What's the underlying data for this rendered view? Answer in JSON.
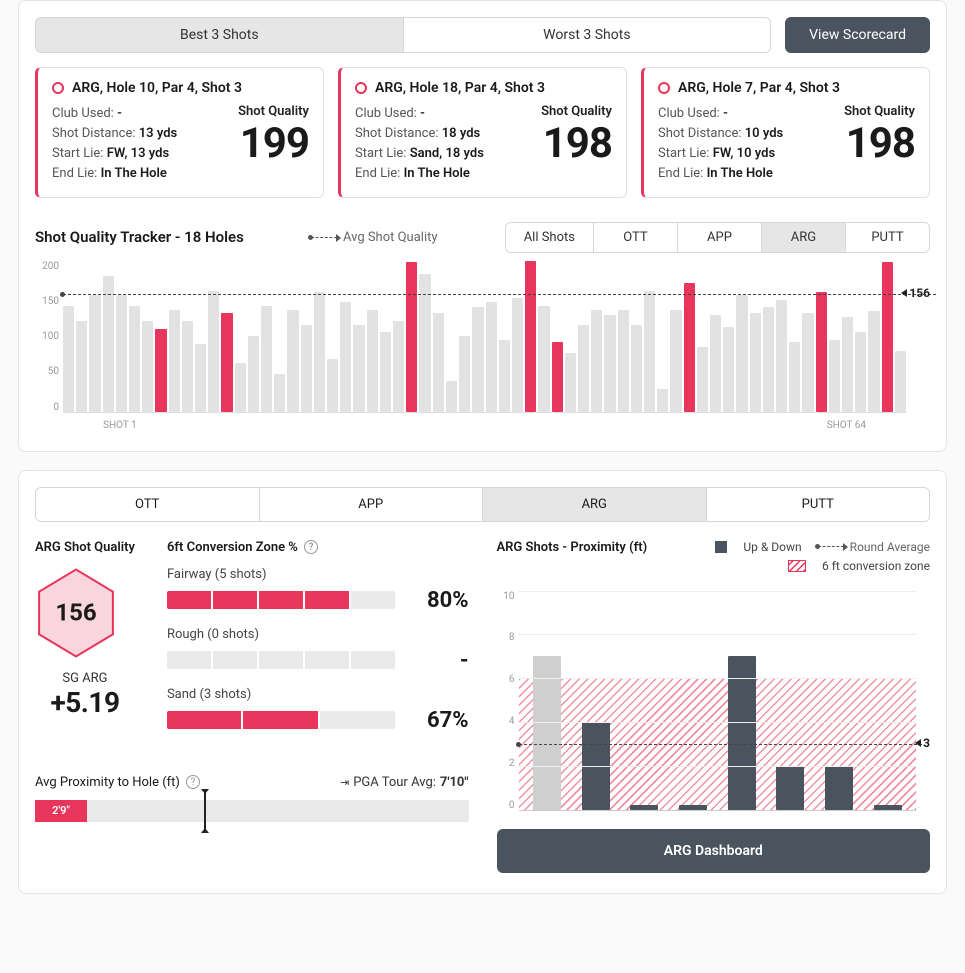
{
  "colors": {
    "accent": "#e7355c",
    "dark": "#4a545e",
    "mutedBar": "#e2e2e2",
    "highlightBar": "#e7355c",
    "hexFill": "#f9d5dd",
    "hexStroke": "#e7355c"
  },
  "topTabs": {
    "best": "Best 3 Shots",
    "worst": "Worst 3 Shots",
    "active": "best"
  },
  "viewScorecard": "View Scorecard",
  "shotCards": [
    {
      "title": "ARG, Hole 10, Par 4, Shot 3",
      "clubLabel": "Club Used:",
      "club": "-",
      "distLabel": "Shot Distance:",
      "dist": "13 yds",
      "startLabel": "Start Lie:",
      "start": "FW, 13 yds",
      "endLabel": "End Lie:",
      "end": "In The Hole",
      "qualityLabel": "Shot Quality",
      "quality": "199"
    },
    {
      "title": "ARG, Hole 18, Par 4, Shot 3",
      "clubLabel": "Club Used:",
      "club": "-",
      "distLabel": "Shot Distance:",
      "dist": "18 yds",
      "startLabel": "Start Lie:",
      "start": "Sand, 18 yds",
      "endLabel": "End Lie:",
      "end": "In The Hole",
      "qualityLabel": "Shot Quality",
      "quality": "198"
    },
    {
      "title": "ARG, Hole 7, Par 4, Shot 3",
      "clubLabel": "Club Used:",
      "club": "-",
      "distLabel": "Shot Distance:",
      "dist": "10 yds",
      "startLabel": "Start Lie:",
      "start": "FW, 10 yds",
      "endLabel": "End Lie:",
      "end": "In The Hole",
      "qualityLabel": "Shot Quality",
      "quality": "198"
    }
  ],
  "tracker": {
    "title": "Shot Quality Tracker - 18 Holes",
    "avgLegend": "Avg Shot Quality",
    "tabs": [
      "All Shots",
      "OTT",
      "APP",
      "ARG",
      "PUTT"
    ],
    "activeTab": "ARG",
    "yMax": 200,
    "yTicks": [
      "200",
      "150",
      "100",
      "50",
      "0"
    ],
    "avgValue": 156,
    "xStart": "SHOT 1",
    "xEnd": "SHOT 64",
    "bars": [
      {
        "v": 140,
        "h": false
      },
      {
        "v": 120,
        "h": false
      },
      {
        "v": 155,
        "h": false
      },
      {
        "v": 180,
        "h": false
      },
      {
        "v": 155,
        "h": false
      },
      {
        "v": 140,
        "h": false
      },
      {
        "v": 120,
        "h": false
      },
      {
        "v": 110,
        "h": true
      },
      {
        "v": 135,
        "h": false
      },
      {
        "v": 120,
        "h": false
      },
      {
        "v": 90,
        "h": false
      },
      {
        "v": 160,
        "h": false
      },
      {
        "v": 130,
        "h": true
      },
      {
        "v": 65,
        "h": false
      },
      {
        "v": 100,
        "h": false
      },
      {
        "v": 140,
        "h": false
      },
      {
        "v": 50,
        "h": false
      },
      {
        "v": 135,
        "h": false
      },
      {
        "v": 115,
        "h": false
      },
      {
        "v": 158,
        "h": false
      },
      {
        "v": 70,
        "h": false
      },
      {
        "v": 145,
        "h": false
      },
      {
        "v": 115,
        "h": false
      },
      {
        "v": 135,
        "h": false
      },
      {
        "v": 105,
        "h": false
      },
      {
        "v": 120,
        "h": false
      },
      {
        "v": 198,
        "h": true
      },
      {
        "v": 182,
        "h": false
      },
      {
        "v": 130,
        "h": false
      },
      {
        "v": 40,
        "h": false
      },
      {
        "v": 100,
        "h": false
      },
      {
        "v": 138,
        "h": false
      },
      {
        "v": 145,
        "h": false
      },
      {
        "v": 95,
        "h": false
      },
      {
        "v": 150,
        "h": false
      },
      {
        "v": 199,
        "h": true
      },
      {
        "v": 140,
        "h": false
      },
      {
        "v": 92,
        "h": true
      },
      {
        "v": 78,
        "h": false
      },
      {
        "v": 115,
        "h": false
      },
      {
        "v": 135,
        "h": false
      },
      {
        "v": 128,
        "h": false
      },
      {
        "v": 135,
        "h": false
      },
      {
        "v": 115,
        "h": false
      },
      {
        "v": 160,
        "h": false
      },
      {
        "v": 30,
        "h": false
      },
      {
        "v": 135,
        "h": false
      },
      {
        "v": 170,
        "h": true
      },
      {
        "v": 85,
        "h": false
      },
      {
        "v": 128,
        "h": false
      },
      {
        "v": 112,
        "h": false
      },
      {
        "v": 155,
        "h": false
      },
      {
        "v": 130,
        "h": false
      },
      {
        "v": 138,
        "h": false
      },
      {
        "v": 148,
        "h": false
      },
      {
        "v": 92,
        "h": false
      },
      {
        "v": 130,
        "h": false
      },
      {
        "v": 158,
        "h": true
      },
      {
        "v": 95,
        "h": false
      },
      {
        "v": 125,
        "h": false
      },
      {
        "v": 105,
        "h": false
      },
      {
        "v": 133,
        "h": false
      },
      {
        "v": 198,
        "h": true
      },
      {
        "v": 80,
        "h": false
      }
    ]
  },
  "lowerTabs": {
    "items": [
      "OTT",
      "APP",
      "ARG",
      "PUTT"
    ],
    "active": "ARG"
  },
  "argQuality": {
    "title": "ARG Shot Quality",
    "hexValue": "156",
    "sgLabel": "SG ARG",
    "sgValue": "+5.19"
  },
  "conversion": {
    "title": "6ft Conversion Zone %",
    "items": [
      {
        "label": "Fairway (5 shots)",
        "pct": 80,
        "display": "80%",
        "segments": 5
      },
      {
        "label": "Rough (0 shots)",
        "pct": 0,
        "display": "-",
        "segments": 5
      },
      {
        "label": "Sand (3 shots)",
        "pct": 67,
        "display": "67%",
        "segments": 3
      }
    ]
  },
  "avgProx": {
    "label": "Avg Proximity to Hole (ft)",
    "pgaLabel": "PGA Tour Avg:",
    "pgaValue": "7'10\"",
    "value": "2'9\"",
    "fillPct": 12,
    "markerPct": 39
  },
  "proxChart": {
    "title": "ARG Shots - Proximity (ft)",
    "legendUpDown": "Up & Down",
    "legendAvg": "Round Average",
    "legendZone": "6 ft conversion zone",
    "yMax": 10,
    "yTicks": [
      "10",
      "8",
      "6",
      "4",
      "2",
      "0"
    ],
    "zoneTop": 6,
    "avg": 3,
    "bars": [
      {
        "v": 7,
        "up": false
      },
      {
        "v": 4,
        "up": true
      },
      {
        "v": 0.2,
        "up": true
      },
      {
        "v": 0.2,
        "up": true
      },
      {
        "v": 7,
        "up": true
      },
      {
        "v": 2,
        "up": true
      },
      {
        "v": 2,
        "up": true
      },
      {
        "v": 0.2,
        "up": true
      }
    ],
    "dashLabel": "ARG Dashboard"
  }
}
